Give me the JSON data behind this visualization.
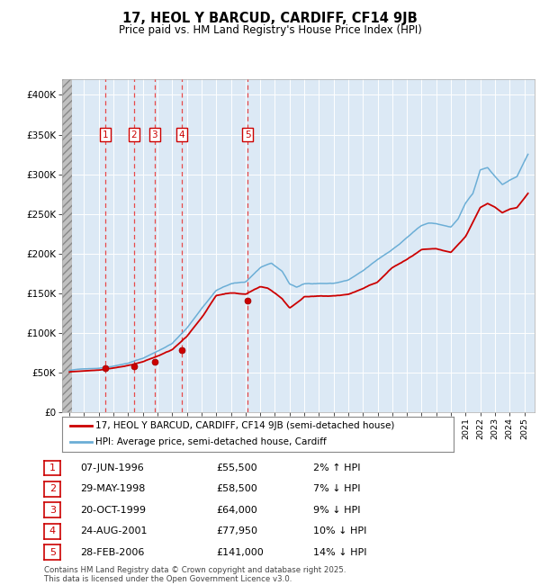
{
  "title": "17, HEOL Y BARCUD, CARDIFF, CF14 9JB",
  "subtitle": "Price paid vs. HM Land Registry's House Price Index (HPI)",
  "legend_line1": "17, HEOL Y BARCUD, CARDIFF, CF14 9JB (semi-detached house)",
  "legend_line2": "HPI: Average price, semi-detached house, Cardiff",
  "transactions": [
    {
      "num": 1,
      "date": "07-JUN-1996",
      "year": 1996.44,
      "price": 55500,
      "pct": "2%",
      "dir": "↑"
    },
    {
      "num": 2,
      "date": "29-MAY-1998",
      "year": 1998.41,
      "price": 58500,
      "pct": "7%",
      "dir": "↓"
    },
    {
      "num": 3,
      "date": "20-OCT-1999",
      "year": 1999.8,
      "price": 64000,
      "pct": "9%",
      "dir": "↓"
    },
    {
      "num": 4,
      "date": "24-AUG-2001",
      "year": 2001.65,
      "price": 77950,
      "pct": "10%",
      "dir": "↓"
    },
    {
      "num": 5,
      "date": "28-FEB-2006",
      "year": 2006.16,
      "price": 141000,
      "pct": "14%",
      "dir": "↓"
    }
  ],
  "hpi_color": "#6baed6",
  "price_color": "#cc0000",
  "dashed_color": "#e84040",
  "plot_bg_color": "#dce9f5",
  "footer": "Contains HM Land Registry data © Crown copyright and database right 2025.\nThis data is licensed under the Open Government Licence v3.0.",
  "ylim": [
    0,
    420000
  ],
  "yticks": [
    0,
    50000,
    100000,
    150000,
    200000,
    250000,
    300000,
    350000,
    400000
  ],
  "hpi_anchors_t": [
    1994.0,
    1995.0,
    1996.0,
    1997.0,
    1998.0,
    1999.0,
    2000.0,
    2001.0,
    2002.0,
    2003.0,
    2004.0,
    2005.0,
    2006.0,
    2007.0,
    2007.75,
    2008.5,
    2009.0,
    2009.5,
    2010.0,
    2011.0,
    2012.0,
    2013.0,
    2014.0,
    2015.0,
    2016.0,
    2016.5,
    2017.0,
    2018.0,
    2018.5,
    2019.0,
    2019.5,
    2020.0,
    2020.5,
    2021.0,
    2021.5,
    2022.0,
    2022.5,
    2023.0,
    2023.5,
    2024.0,
    2024.5,
    2025.25
  ],
  "hpi_anchors_v": [
    53000,
    55000,
    56000,
    59000,
    63000,
    69000,
    78000,
    88000,
    107000,
    132000,
    155000,
    163000,
    165000,
    183000,
    188000,
    178000,
    162000,
    158000,
    162000,
    163000,
    163000,
    167000,
    178000,
    192000,
    205000,
    212000,
    220000,
    235000,
    238000,
    237000,
    235000,
    233000,
    243000,
    263000,
    275000,
    305000,
    308000,
    297000,
    287000,
    292000,
    297000,
    325000
  ],
  "price_anchors_t": [
    1994.0,
    1995.0,
    1996.0,
    1997.0,
    1998.0,
    1999.0,
    2000.0,
    2001.0,
    2002.0,
    2003.0,
    2004.0,
    2005.0,
    2006.0,
    2007.0,
    2007.5,
    2008.0,
    2008.5,
    2009.0,
    2009.5,
    2010.0,
    2011.0,
    2012.0,
    2013.0,
    2014.0,
    2015.0,
    2016.0,
    2017.0,
    2018.0,
    2019.0,
    2020.0,
    2021.0,
    2022.0,
    2022.5,
    2023.0,
    2023.5,
    2024.0,
    2024.5,
    2025.25
  ],
  "price_anchors_v": [
    51000,
    52500,
    54000,
    57000,
    60000,
    65000,
    72000,
    80000,
    96000,
    120000,
    148000,
    152000,
    150000,
    160000,
    158000,
    152000,
    145000,
    133000,
    140000,
    148000,
    148000,
    148000,
    150000,
    157000,
    165000,
    183000,
    193000,
    205000,
    205000,
    200000,
    220000,
    257000,
    262000,
    257000,
    250000,
    255000,
    257000,
    275000
  ]
}
